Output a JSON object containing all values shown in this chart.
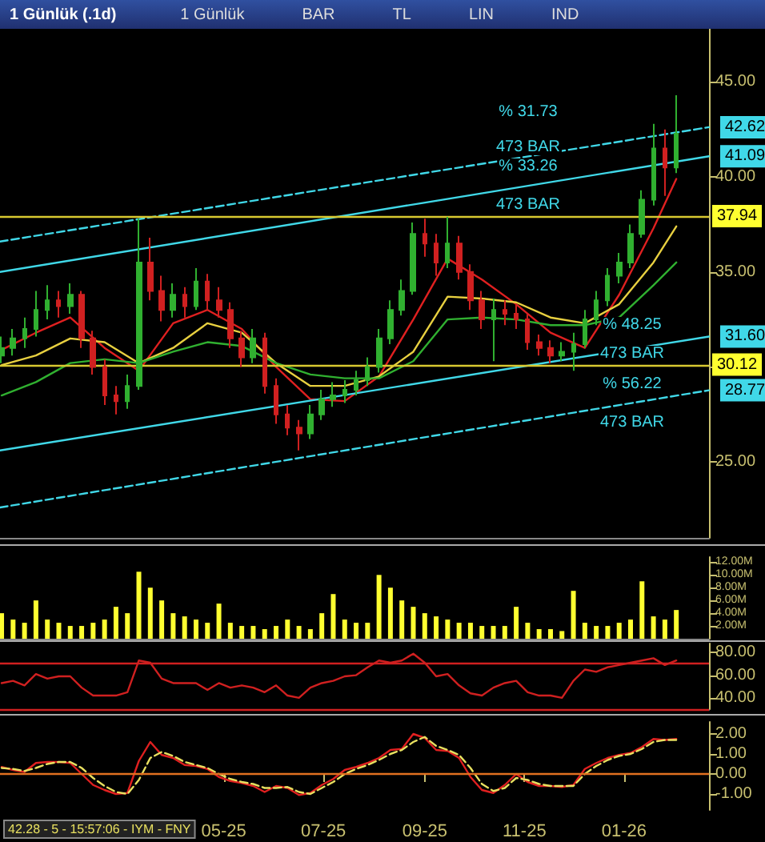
{
  "chart_data": [
    {
      "type": "candlestick",
      "title": "1 Günlük (.1d)",
      "tick_labels": "y",
      "annotations": [
        "1 Günlük",
        "BAR",
        "TL",
        "LIN",
        "IND",
        "% 31.73",
        "473 BAR",
        "% 33.26",
        "473 BAR",
        "% 48.25",
        "473 BAR",
        "% 56.22",
        "473 BAR"
      ],
      "x": [
        "2024-12-16",
        "2024-12-23",
        "2024-12-30",
        "2025-01-06",
        "2025-01-13",
        "2025-01-20",
        "2025-01-27",
        "2025-02-03",
        "2025-02-10",
        "2025-02-17",
        "2025-02-24",
        "2025-03-03",
        "2025-03-10",
        "2025-03-17",
        "2025-03-24",
        "2025-03-31",
        "2025-04-07",
        "2025-04-14",
        "2025-04-21",
        "2025-04-28",
        "2025-05-05",
        "2025-05-12",
        "2025-05-19",
        "2025-05-26",
        "2025-06-02",
        "2025-06-09",
        "2025-06-16",
        "2025-06-23",
        "2025-06-30",
        "2025-07-07",
        "2025-07-14",
        "2025-07-21",
        "2025-07-28",
        "2025-08-04",
        "2025-08-11",
        "2025-08-18",
        "2025-08-25",
        "2025-09-01",
        "2025-09-08",
        "2025-09-15",
        "2025-09-22",
        "2025-09-29",
        "2025-10-06",
        "2025-10-13",
        "2025-10-20",
        "2025-10-27",
        "2025-11-03",
        "2025-11-10",
        "2025-11-17",
        "2025-11-24",
        "2025-12-01",
        "2025-12-08",
        "2025-12-15",
        "2025-12-22",
        "2025-12-29",
        "2026-01-05",
        "2026-01-12",
        "2026-01-19",
        "2026-01-26",
        "2026-02-02"
      ],
      "ohlc": [
        [
          30.6,
          31.6,
          30.2,
          31.0
        ],
        [
          31.0,
          32.0,
          30.6,
          31.5
        ],
        [
          31.5,
          32.6,
          31.0,
          32.0
        ],
        [
          32.0,
          34.0,
          31.6,
          33.0
        ],
        [
          33.0,
          34.3,
          32.5,
          33.5
        ],
        [
          33.5,
          34.0,
          32.6,
          33.2
        ],
        [
          33.2,
          34.4,
          32.8,
          33.8
        ],
        [
          33.8,
          34.0,
          31.0,
          31.5
        ],
        [
          31.5,
          31.9,
          29.6,
          30.0
        ],
        [
          30.0,
          30.4,
          28.0,
          28.5
        ],
        [
          28.5,
          29.0,
          27.5,
          28.2
        ],
        [
          28.2,
          29.6,
          27.8,
          29.0
        ],
        [
          29.0,
          37.8,
          28.8,
          35.5
        ],
        [
          35.5,
          36.8,
          33.5,
          34.0
        ],
        [
          34.0,
          34.8,
          32.4,
          33.0
        ],
        [
          33.0,
          34.4,
          32.6,
          33.8
        ],
        [
          33.8,
          34.2,
          32.6,
          33.2
        ],
        [
          33.2,
          35.2,
          33.0,
          34.5
        ],
        [
          34.5,
          34.9,
          33.0,
          33.5
        ],
        [
          33.5,
          34.2,
          32.6,
          33.0
        ],
        [
          33.0,
          33.4,
          31.0,
          31.5
        ],
        [
          31.5,
          31.9,
          30.0,
          30.5
        ],
        [
          30.5,
          32.0,
          30.2,
          31.5
        ],
        [
          31.5,
          31.8,
          28.6,
          29.0
        ],
        [
          29.0,
          29.4,
          27.0,
          27.5
        ],
        [
          27.5,
          28.0,
          26.4,
          26.8
        ],
        [
          26.8,
          27.2,
          25.6,
          26.5
        ],
        [
          26.5,
          28.0,
          26.2,
          27.5
        ],
        [
          27.5,
          28.8,
          27.2,
          28.3
        ],
        [
          28.3,
          29.2,
          27.9,
          28.5
        ],
        [
          28.5,
          29.3,
          28.1,
          28.8
        ],
        [
          28.8,
          29.8,
          28.5,
          29.3
        ],
        [
          29.3,
          30.5,
          29.0,
          30.0
        ],
        [
          30.0,
          32.0,
          29.7,
          31.5
        ],
        [
          31.5,
          33.5,
          31.2,
          33.0
        ],
        [
          33.0,
          34.6,
          32.7,
          34.0
        ],
        [
          34.0,
          37.6,
          33.8,
          37.0
        ],
        [
          37.0,
          37.8,
          35.8,
          36.5
        ],
        [
          36.5,
          37.0,
          34.8,
          35.5
        ],
        [
          35.5,
          37.9,
          35.2,
          36.5
        ],
        [
          36.5,
          36.9,
          34.6,
          35.0
        ],
        [
          35.0,
          35.4,
          33.0,
          33.5
        ],
        [
          33.5,
          34.0,
          32.0,
          32.5
        ],
        [
          32.5,
          33.6,
          30.3,
          33.0
        ],
        [
          33.0,
          33.5,
          32.2,
          32.8
        ],
        [
          32.8,
          33.3,
          32.0,
          32.5
        ],
        [
          32.5,
          32.8,
          30.9,
          31.3
        ],
        [
          31.3,
          31.7,
          30.6,
          31.0
        ],
        [
          31.0,
          31.4,
          30.2,
          30.6
        ],
        [
          30.6,
          31.3,
          30.3,
          30.8
        ],
        [
          30.8,
          31.8,
          29.8,
          31.2
        ],
        [
          31.2,
          33.0,
          31.0,
          32.5
        ],
        [
          32.5,
          34.0,
          32.2,
          33.5
        ],
        [
          33.5,
          35.2,
          33.2,
          34.8
        ],
        [
          34.8,
          36.0,
          34.4,
          35.5
        ],
        [
          35.5,
          37.5,
          35.2,
          37.0
        ],
        [
          37.0,
          39.3,
          36.8,
          38.8
        ],
        [
          38.8,
          42.8,
          38.5,
          41.5
        ],
        [
          41.5,
          42.5,
          39.0,
          40.5
        ],
        [
          40.5,
          44.3,
          40.2,
          42.28
        ]
      ],
      "series": [
        {
          "type": "line",
          "color": "#e02020",
          "x": [
            "2024-12-16",
            "2025-01-06",
            "2025-01-27",
            "2025-02-17",
            "2025-03-10",
            "2025-03-31",
            "2025-04-21",
            "2025-05-12",
            "2025-06-02",
            "2025-06-23",
            "2025-07-14",
            "2025-08-04",
            "2025-08-25",
            "2025-09-15",
            "2025-10-06",
            "2025-10-27",
            "2025-11-17",
            "2025-12-08",
            "2025-12-29",
            "2026-01-19",
            "2026-02-02"
          ],
          "values": [
            30.9,
            31.8,
            32.6,
            31.0,
            29.8,
            32.3,
            33.0,
            32.0,
            30.0,
            28.3,
            28.2,
            29.5,
            32.5,
            35.7,
            34.6,
            33.3,
            31.8,
            31.0,
            33.8,
            37.3,
            39.9
          ]
        },
        {
          "type": "line",
          "color": "#e8d040",
          "x": [
            "2024-12-16",
            "2025-01-06",
            "2025-01-27",
            "2025-02-17",
            "2025-03-10",
            "2025-03-31",
            "2025-04-21",
            "2025-05-12",
            "2025-06-02",
            "2025-06-23",
            "2025-07-14",
            "2025-08-04",
            "2025-08-25",
            "2025-09-15",
            "2025-10-06",
            "2025-10-27",
            "2025-11-17",
            "2025-12-08",
            "2025-12-29",
            "2026-01-19",
            "2026-02-02"
          ],
          "values": [
            30.1,
            30.6,
            31.5,
            31.3,
            30.2,
            31.0,
            32.3,
            31.8,
            30.2,
            29.0,
            29.0,
            29.5,
            30.8,
            33.7,
            33.6,
            33.4,
            32.6,
            32.3,
            33.3,
            35.5,
            37.4
          ]
        },
        {
          "type": "line",
          "color": "#30b030",
          "x": [
            "2024-12-16",
            "2025-01-06",
            "2025-01-27",
            "2025-02-17",
            "2025-03-10",
            "2025-03-31",
            "2025-04-21",
            "2025-05-12",
            "2025-06-02",
            "2025-06-23",
            "2025-07-14",
            "2025-08-04",
            "2025-08-25",
            "2025-09-15",
            "2025-10-06",
            "2025-10-27",
            "2025-11-17",
            "2025-12-08",
            "2025-12-29",
            "2026-01-19",
            "2026-02-02"
          ],
          "values": [
            28.5,
            29.2,
            30.2,
            30.4,
            30.2,
            30.8,
            31.3,
            31.1,
            30.2,
            29.6,
            29.4,
            29.4,
            30.3,
            32.5,
            32.6,
            32.5,
            32.2,
            32.2,
            32.6,
            34.3,
            35.5
          ]
        },
        {
          "type": "line",
          "color": "#40d8e8",
          "line_style": "dashed",
          "x": [
            "2024-12-15",
            "2026-02-22"
          ],
          "values": [
            36.6,
            42.62
          ],
          "value_labels": [
            null,
            "42.62"
          ]
        },
        {
          "type": "line",
          "color": "#40d8e8",
          "line_style": "solid",
          "x": [
            "2024-12-15",
            "2026-02-22"
          ],
          "values": [
            35.0,
            41.09
          ],
          "value_labels": [
            null,
            "41.09"
          ]
        },
        {
          "type": "line",
          "color": "#40d8e8",
          "line_style": "solid",
          "x": [
            "2024-12-15",
            "2026-02-22"
          ],
          "values": [
            25.6,
            31.6
          ],
          "value_labels": [
            null,
            "31.60"
          ]
        },
        {
          "type": "line",
          "color": "#40d8e8",
          "line_style": "dashed",
          "x": [
            "2024-12-15",
            "2026-02-22"
          ],
          "values": [
            22.6,
            28.77
          ],
          "value_labels": [
            null,
            "28.77"
          ]
        }
      ],
      "ref_lines": [
        {
          "axis": "y",
          "value": 37.94,
          "label": "37.94",
          "color": "#d8c830"
        },
        {
          "axis": "y",
          "value": 30.12,
          "label": "30.12",
          "color": "#d8c830"
        }
      ],
      "xlim": [
        "2024-12-15",
        "2026-02-22"
      ],
      "ylim": [
        21,
        47.8
      ],
      "yticks": [
        {
          "value": 25,
          "label": "25.00"
        },
        {
          "value": 30,
          "label": null
        },
        {
          "value": 35,
          "label": "35.00"
        },
        {
          "value": 40,
          "label": "40.00"
        },
        {
          "value": 45,
          "label": "45.00"
        }
      ]
    },
    {
      "type": "bar",
      "tick_labels": "y",
      "color": "#ffff30",
      "x": [
        "2024-12-16",
        "2024-12-23",
        "2024-12-30",
        "2025-01-06",
        "2025-01-13",
        "2025-01-20",
        "2025-01-27",
        "2025-02-03",
        "2025-02-10",
        "2025-02-17",
        "2025-02-24",
        "2025-03-03",
        "2025-03-10",
        "2025-03-17",
        "2025-03-24",
        "2025-03-31",
        "2025-04-07",
        "2025-04-14",
        "2025-04-21",
        "2025-04-28",
        "2025-05-05",
        "2025-05-12",
        "2025-05-19",
        "2025-05-26",
        "2025-06-02",
        "2025-06-09",
        "2025-06-16",
        "2025-06-23",
        "2025-06-30",
        "2025-07-07",
        "2025-07-14",
        "2025-07-21",
        "2025-07-28",
        "2025-08-04",
        "2025-08-11",
        "2025-08-18",
        "2025-08-25",
        "2025-09-01",
        "2025-09-08",
        "2025-09-15",
        "2025-09-22",
        "2025-09-29",
        "2025-10-06",
        "2025-10-13",
        "2025-10-20",
        "2025-10-27",
        "2025-11-03",
        "2025-11-10",
        "2025-11-17",
        "2025-11-24",
        "2025-12-01",
        "2025-12-08",
        "2025-12-15",
        "2025-12-22",
        "2025-12-29",
        "2026-01-05",
        "2026-01-12",
        "2026-01-19",
        "2026-01-26",
        "2026-02-02"
      ],
      "values": [
        4,
        3,
        2.5,
        6,
        3,
        2.5,
        2,
        2,
        2.5,
        3,
        5,
        4,
        10.5,
        8,
        6,
        4,
        3.5,
        3,
        2.5,
        5.5,
        2.5,
        2,
        2,
        1.5,
        2,
        3,
        2,
        1.5,
        4,
        7,
        3,
        2.5,
        2.5,
        10,
        8,
        6,
        5,
        4,
        3.5,
        3,
        2.5,
        2.5,
        2,
        2,
        2,
        5,
        2.5,
        1.5,
        1.5,
        1.2,
        7.5,
        2.5,
        2,
        2,
        2.5,
        3,
        9,
        3.5,
        3,
        4.5
      ],
      "xlim": [
        "2024-12-15",
        "2026-02-22"
      ],
      "ylim": [
        0,
        12.8
      ],
      "yticks": [
        {
          "value": 2,
          "label": "2.00M"
        },
        {
          "value": 4,
          "label": "4.00M"
        },
        {
          "value": 6,
          "label": "6.00M"
        },
        {
          "value": 8,
          "label": "8.00M"
        },
        {
          "value": 10,
          "label": "10.00M"
        },
        {
          "value": 12,
          "label": "12.00M"
        }
      ]
    },
    {
      "type": "line",
      "tick_labels": "y",
      "x": [
        "2024-12-16",
        "2024-12-23",
        "2024-12-30",
        "2025-01-06",
        "2025-01-13",
        "2025-01-20",
        "2025-01-27",
        "2025-02-03",
        "2025-02-10",
        "2025-02-17",
        "2025-02-24",
        "2025-03-03",
        "2025-03-10",
        "2025-03-17",
        "2025-03-24",
        "2025-03-31",
        "2025-04-07",
        "2025-04-14",
        "2025-04-21",
        "2025-04-28",
        "2025-05-05",
        "2025-05-12",
        "2025-05-19",
        "2025-05-26",
        "2025-06-02",
        "2025-06-09",
        "2025-06-16",
        "2025-06-23",
        "2025-06-30",
        "2025-07-07",
        "2025-07-14",
        "2025-07-21",
        "2025-07-28",
        "2025-08-04",
        "2025-08-11",
        "2025-08-18",
        "2025-08-25",
        "2025-09-01",
        "2025-09-08",
        "2025-09-15",
        "2025-09-22",
        "2025-09-29",
        "2025-10-06",
        "2025-10-13",
        "2025-10-20",
        "2025-10-27",
        "2025-11-03",
        "2025-11-10",
        "2025-11-17",
        "2025-11-24",
        "2025-12-01",
        "2025-12-08",
        "2025-12-15",
        "2025-12-22",
        "2025-12-29",
        "2026-01-05",
        "2026-01-12",
        "2026-01-19",
        "2026-01-26",
        "2026-02-02"
      ],
      "series": [
        {
          "color": "#d02020",
          "values": [
            53,
            55,
            51,
            61,
            57,
            59,
            59,
            49,
            42,
            42,
            42,
            45,
            73,
            71,
            57,
            53,
            53,
            53,
            47,
            53,
            49,
            51,
            49,
            45,
            51,
            42,
            40,
            49,
            53,
            55,
            59,
            60,
            67,
            73,
            71,
            73,
            79,
            71,
            59,
            61,
            51,
            44,
            42,
            49,
            53,
            55,
            45,
            42,
            42,
            40,
            55,
            65,
            63,
            67,
            69,
            71,
            73,
            75,
            69,
            73
          ]
        }
      ],
      "ref_lines": [
        {
          "axis": "y",
          "value": 70,
          "color": "#d02020"
        },
        {
          "axis": "y",
          "value": 30,
          "color": "#d02020"
        }
      ],
      "xlim": [
        "2024-12-15",
        "2026-02-22"
      ],
      "ylim": [
        30,
        88
      ],
      "yticks": [
        {
          "value": 40,
          "label": "40.00"
        },
        {
          "value": 60,
          "label": "60.00"
        },
        {
          "value": 80,
          "label": "80.00"
        }
      ]
    },
    {
      "type": "line",
      "annotations": [
        "42.28 - 5 - 15:57:06 - IYM - FNY"
      ],
      "x": [
        "2024-12-16",
        "2024-12-23",
        "2024-12-30",
        "2025-01-06",
        "2025-01-13",
        "2025-01-20",
        "2025-01-27",
        "2025-02-03",
        "2025-02-10",
        "2025-02-17",
        "2025-02-24",
        "2025-03-03",
        "2025-03-10",
        "2025-03-17",
        "2025-03-24",
        "2025-03-31",
        "2025-04-07",
        "2025-04-14",
        "2025-04-21",
        "2025-04-28",
        "2025-05-05",
        "2025-05-12",
        "2025-05-19",
        "2025-05-26",
        "2025-06-02",
        "2025-06-09",
        "2025-06-16",
        "2025-06-23",
        "2025-06-30",
        "2025-07-07",
        "2025-07-14",
        "2025-07-21",
        "2025-07-28",
        "2025-08-04",
        "2025-08-11",
        "2025-08-18",
        "2025-08-25",
        "2025-09-01",
        "2025-09-08",
        "2025-09-15",
        "2025-09-22",
        "2025-09-29",
        "2025-10-06",
        "2025-10-13",
        "2025-10-20",
        "2025-10-27",
        "2025-11-03",
        "2025-11-10",
        "2025-11-17",
        "2025-11-24",
        "2025-12-01",
        "2025-12-08",
        "2025-12-15",
        "2025-12-22",
        "2025-12-29",
        "2026-01-05",
        "2026-01-12",
        "2026-01-19",
        "2026-01-26",
        "2026-02-02"
      ],
      "series": [
        {
          "color": "#e02020",
          "line_style": "solid",
          "values": [
            0.35,
            0.2,
            0.1,
            0.55,
            0.6,
            0.6,
            0.55,
            0,
            -0.55,
            -0.8,
            -1.0,
            -0.95,
            0.65,
            1.6,
            0.95,
            0.8,
            0.45,
            0.4,
            0.25,
            -0.15,
            -0.35,
            -0.45,
            -0.6,
            -0.9,
            -0.6,
            -0.7,
            -1.05,
            -0.95,
            -0.55,
            -0.25,
            0.2,
            0.35,
            0.55,
            0.8,
            1.2,
            1.25,
            2.0,
            1.8,
            1.2,
            1.15,
            0.8,
            -0.15,
            -0.8,
            -0.95,
            -0.55,
            0,
            -0.4,
            -0.6,
            -0.6,
            -0.65,
            -0.55,
            0.25,
            0.55,
            0.8,
            0.95,
            1.05,
            1.35,
            1.75,
            1.7,
            1.75
          ]
        },
        {
          "color": "#e8e060",
          "line_style": "dashed",
          "values": [
            0.3,
            0.25,
            0.15,
            0.3,
            0.5,
            0.6,
            0.6,
            0.3,
            -0.2,
            -0.6,
            -0.9,
            -1.0,
            -0.3,
            0.8,
            1.1,
            0.9,
            0.6,
            0.45,
            0.3,
            0.0,
            -0.25,
            -0.4,
            -0.5,
            -0.7,
            -0.7,
            -0.65,
            -0.9,
            -1.0,
            -0.7,
            -0.4,
            0.0,
            0.25,
            0.45,
            0.7,
            1.0,
            1.2,
            1.6,
            1.85,
            1.4,
            1.2,
            0.95,
            0.3,
            -0.5,
            -0.85,
            -0.7,
            -0.2,
            -0.3,
            -0.5,
            -0.6,
            -0.6,
            -0.6,
            0.0,
            0.4,
            0.7,
            0.9,
            1.0,
            1.25,
            1.6,
            1.7,
            1.7
          ]
        }
      ],
      "ref_lines": [
        {
          "axis": "y",
          "value": 0,
          "color": "#e07020"
        }
      ],
      "xlim": [
        "2024-12-15",
        "2026-02-22"
      ],
      "ylim": [
        -1.8,
        2.6
      ],
      "xticks": [
        {
          "value": "2025-05-01",
          "label": "05-25"
        },
        {
          "value": "2025-07-01",
          "label": "07-25"
        },
        {
          "value": "2025-09-01",
          "label": "09-25"
        },
        {
          "value": "2025-11-01",
          "label": "11-25"
        },
        {
          "value": "2026-01-01",
          "label": "01-26"
        }
      ],
      "yticks": [
        {
          "value": -1,
          "label": "-1.00"
        },
        {
          "value": 0,
          "label": "0.00"
        },
        {
          "value": 1,
          "label": "1.00"
        },
        {
          "value": 2,
          "label": "2.00"
        }
      ]
    }
  ]
}
